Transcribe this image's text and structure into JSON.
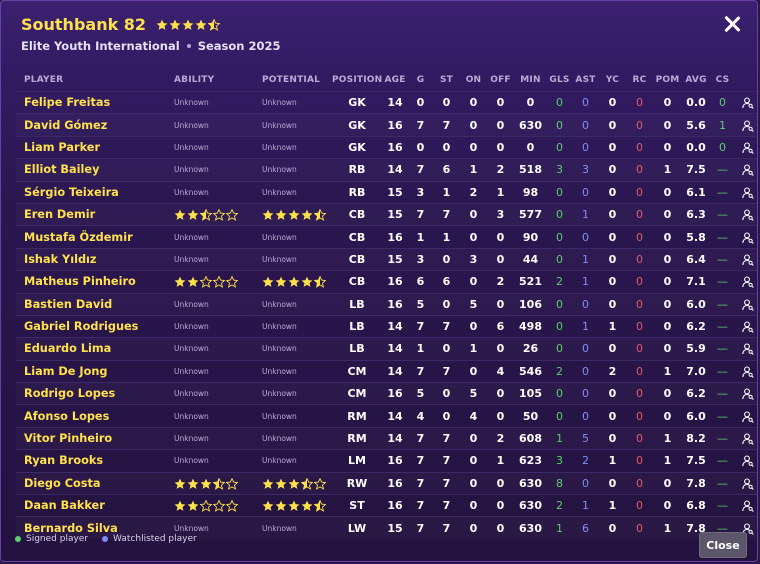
{
  "header": {
    "title": "Southbank 82",
    "title_rating": 4.5,
    "subtitle_left": "Elite Youth International",
    "subtitle_right": "Season 2025"
  },
  "colors": {
    "star": "#ffe14a",
    "star_empty": "#ffe14a",
    "green": "#59cf6b",
    "blue": "#7f8df5",
    "red": "#e05a6a",
    "name": "#ffe14a"
  },
  "columns": [
    "PLAYER",
    "ABILITY",
    "POTENTIAL",
    "POSITION",
    "AGE",
    "G",
    "ST",
    "ON",
    "OFF",
    "MIN",
    "GLS",
    "AST",
    "YC",
    "RC",
    "POM",
    "AVG",
    "CS"
  ],
  "players": [
    {
      "name": "Felipe Freitas",
      "ability": "Unknown",
      "potential": "Unknown",
      "position": "GK",
      "age": "14",
      "g": "0",
      "st": "0",
      "on": "0",
      "off": "0",
      "min": "0",
      "gls": "0",
      "ast": "0",
      "yc": "0",
      "rc": "0",
      "pom": "0",
      "avg": "0.0",
      "cs": "0"
    },
    {
      "name": "David Gómez",
      "ability": "Unknown",
      "potential": "Unknown",
      "position": "GK",
      "age": "16",
      "g": "7",
      "st": "7",
      "on": "0",
      "off": "0",
      "min": "630",
      "gls": "0",
      "ast": "0",
      "yc": "0",
      "rc": "0",
      "pom": "0",
      "avg": "5.6",
      "cs": "1"
    },
    {
      "name": "Liam Parker",
      "ability": "Unknown",
      "potential": "Unknown",
      "position": "GK",
      "age": "16",
      "g": "0",
      "st": "0",
      "on": "0",
      "off": "0",
      "min": "0",
      "gls": "0",
      "ast": "0",
      "yc": "0",
      "rc": "0",
      "pom": "0",
      "avg": "0.0",
      "cs": "0"
    },
    {
      "name": "Elliot Bailey",
      "ability": "Unknown",
      "potential": "Unknown",
      "position": "RB",
      "age": "14",
      "g": "7",
      "st": "6",
      "on": "1",
      "off": "2",
      "min": "518",
      "gls": "3",
      "ast": "3",
      "yc": "0",
      "rc": "0",
      "pom": "1",
      "avg": "7.5",
      "cs": "—"
    },
    {
      "name": "Sérgio Teixeira",
      "ability": "Unknown",
      "potential": "Unknown",
      "position": "RB",
      "age": "15",
      "g": "3",
      "st": "1",
      "on": "2",
      "off": "1",
      "min": "98",
      "gls": "0",
      "ast": "0",
      "yc": "0",
      "rc": "0",
      "pom": "0",
      "avg": "6.1",
      "cs": "—"
    },
    {
      "name": "Eren Demir",
      "ability": 2.5,
      "potential": 4.5,
      "position": "CB",
      "age": "15",
      "g": "7",
      "st": "7",
      "on": "0",
      "off": "3",
      "min": "577",
      "gls": "0",
      "ast": "1",
      "yc": "0",
      "rc": "0",
      "pom": "0",
      "avg": "6.3",
      "cs": "—"
    },
    {
      "name": "Mustafa Özdemir",
      "ability": "Unknown",
      "potential": "Unknown",
      "position": "CB",
      "age": "16",
      "g": "1",
      "st": "1",
      "on": "0",
      "off": "0",
      "min": "90",
      "gls": "0",
      "ast": "0",
      "yc": "0",
      "rc": "0",
      "pom": "0",
      "avg": "5.8",
      "cs": "—"
    },
    {
      "name": "Ishak Yıldız",
      "ability": "Unknown",
      "potential": "Unknown",
      "position": "CB",
      "age": "15",
      "g": "3",
      "st": "0",
      "on": "3",
      "off": "0",
      "min": "44",
      "gls": "0",
      "ast": "1",
      "yc": "0",
      "rc": "0",
      "pom": "0",
      "avg": "6.4",
      "cs": "—"
    },
    {
      "name": "Matheus Pinheiro",
      "ability": 2,
      "potential": 4.5,
      "position": "CB",
      "age": "16",
      "g": "6",
      "st": "6",
      "on": "0",
      "off": "2",
      "min": "521",
      "gls": "2",
      "ast": "1",
      "yc": "0",
      "rc": "0",
      "pom": "0",
      "avg": "7.1",
      "cs": "—"
    },
    {
      "name": "Bastien David",
      "ability": "Unknown",
      "potential": "Unknown",
      "position": "LB",
      "age": "16",
      "g": "5",
      "st": "0",
      "on": "5",
      "off": "0",
      "min": "106",
      "gls": "0",
      "ast": "0",
      "yc": "0",
      "rc": "0",
      "pom": "0",
      "avg": "6.0",
      "cs": "—"
    },
    {
      "name": "Gabriel Rodrigues",
      "ability": "Unknown",
      "potential": "Unknown",
      "position": "LB",
      "age": "14",
      "g": "7",
      "st": "7",
      "on": "0",
      "off": "6",
      "min": "498",
      "gls": "0",
      "ast": "1",
      "yc": "1",
      "rc": "0",
      "pom": "0",
      "avg": "6.2",
      "cs": "—"
    },
    {
      "name": "Eduardo Lima",
      "ability": "Unknown",
      "potential": "Unknown",
      "position": "LB",
      "age": "14",
      "g": "1",
      "st": "0",
      "on": "1",
      "off": "0",
      "min": "26",
      "gls": "0",
      "ast": "0",
      "yc": "0",
      "rc": "0",
      "pom": "0",
      "avg": "5.9",
      "cs": "—"
    },
    {
      "name": "Liam De Jong",
      "ability": "Unknown",
      "potential": "Unknown",
      "position": "CM",
      "age": "14",
      "g": "7",
      "st": "7",
      "on": "0",
      "off": "4",
      "min": "546",
      "gls": "2",
      "ast": "0",
      "yc": "2",
      "rc": "0",
      "pom": "1",
      "avg": "7.0",
      "cs": "—"
    },
    {
      "name": "Rodrigo Lopes",
      "ability": "Unknown",
      "potential": "Unknown",
      "position": "CM",
      "age": "16",
      "g": "5",
      "st": "0",
      "on": "5",
      "off": "0",
      "min": "105",
      "gls": "0",
      "ast": "0",
      "yc": "0",
      "rc": "0",
      "pom": "0",
      "avg": "6.2",
      "cs": "—"
    },
    {
      "name": "Afonso Lopes",
      "ability": "Unknown",
      "potential": "Unknown",
      "position": "RM",
      "age": "14",
      "g": "4",
      "st": "0",
      "on": "4",
      "off": "0",
      "min": "50",
      "gls": "0",
      "ast": "0",
      "yc": "0",
      "rc": "0",
      "pom": "0",
      "avg": "6.0",
      "cs": "—"
    },
    {
      "name": "Vitor Pinheiro",
      "ability": "Unknown",
      "potential": "Unknown",
      "position": "RM",
      "age": "14",
      "g": "7",
      "st": "7",
      "on": "0",
      "off": "2",
      "min": "608",
      "gls": "1",
      "ast": "5",
      "yc": "0",
      "rc": "0",
      "pom": "1",
      "avg": "8.2",
      "cs": "—"
    },
    {
      "name": "Ryan Brooks",
      "ability": "Unknown",
      "potential": "Unknown",
      "position": "LM",
      "age": "16",
      "g": "7",
      "st": "7",
      "on": "0",
      "off": "1",
      "min": "623",
      "gls": "3",
      "ast": "2",
      "yc": "1",
      "rc": "0",
      "pom": "1",
      "avg": "7.5",
      "cs": "—"
    },
    {
      "name": "Diego Costa",
      "ability": 3.5,
      "potential": 3.5,
      "position": "RW",
      "age": "16",
      "g": "7",
      "st": "7",
      "on": "0",
      "off": "0",
      "min": "630",
      "gls": "8",
      "ast": "0",
      "yc": "0",
      "rc": "0",
      "pom": "0",
      "avg": "7.8",
      "cs": "—"
    },
    {
      "name": "Daan Bakker",
      "ability": 2,
      "potential": 4.5,
      "position": "ST",
      "age": "16",
      "g": "7",
      "st": "7",
      "on": "0",
      "off": "0",
      "min": "630",
      "gls": "2",
      "ast": "1",
      "yc": "1",
      "rc": "0",
      "pom": "0",
      "avg": "6.8",
      "cs": "—"
    },
    {
      "name": "Bernardo Silva",
      "ability": "Unknown",
      "potential": "Unknown",
      "position": "LW",
      "age": "15",
      "g": "7",
      "st": "7",
      "on": "0",
      "off": "0",
      "min": "630",
      "gls": "1",
      "ast": "6",
      "yc": "0",
      "rc": "0",
      "pom": "1",
      "avg": "7.8",
      "cs": "—"
    }
  ],
  "footer": {
    "legend": [
      {
        "label": "Signed player",
        "color": "#59cf6b"
      },
      {
        "label": "Watchlisted player",
        "color": "#7f8df5"
      }
    ],
    "close_label": "Close"
  },
  "icons": {
    "row_action": "person-search-icon",
    "close": "close-icon",
    "star": "star-icon"
  }
}
